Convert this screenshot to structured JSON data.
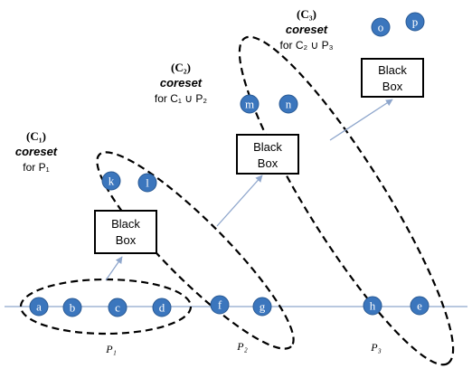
{
  "labels": {
    "c1": {
      "title": "(C₁)",
      "coreset": "coreset",
      "desc": "for P₁"
    },
    "c2": {
      "title": "(C₂)",
      "coreset": "coreset",
      "desc": "for C₁ ∪ P₂"
    },
    "c3": {
      "title": "(C₃)",
      "coreset": "coreset",
      "desc": "for C₂ ∪ P₃"
    }
  },
  "boxes": {
    "box1": [
      "Black",
      "Box"
    ],
    "box2": [
      "Black",
      "Box"
    ],
    "box3": [
      "Black",
      "Box"
    ]
  },
  "partitions": {
    "p1": "P₁",
    "p2": "P₂",
    "p3": "P₃"
  },
  "nodes": {
    "a": "a",
    "b": "b",
    "c": "c",
    "d": "d",
    "f": "f",
    "g": "g",
    "h": "h",
    "e": "e",
    "k": "k",
    "l": "l",
    "m": "m",
    "n": "n",
    "o": "o",
    "p": "p"
  },
  "colors": {
    "node_fill": "#3b76bd",
    "arrow": "#8ea6cc",
    "baseline": "#8ea6cc"
  }
}
